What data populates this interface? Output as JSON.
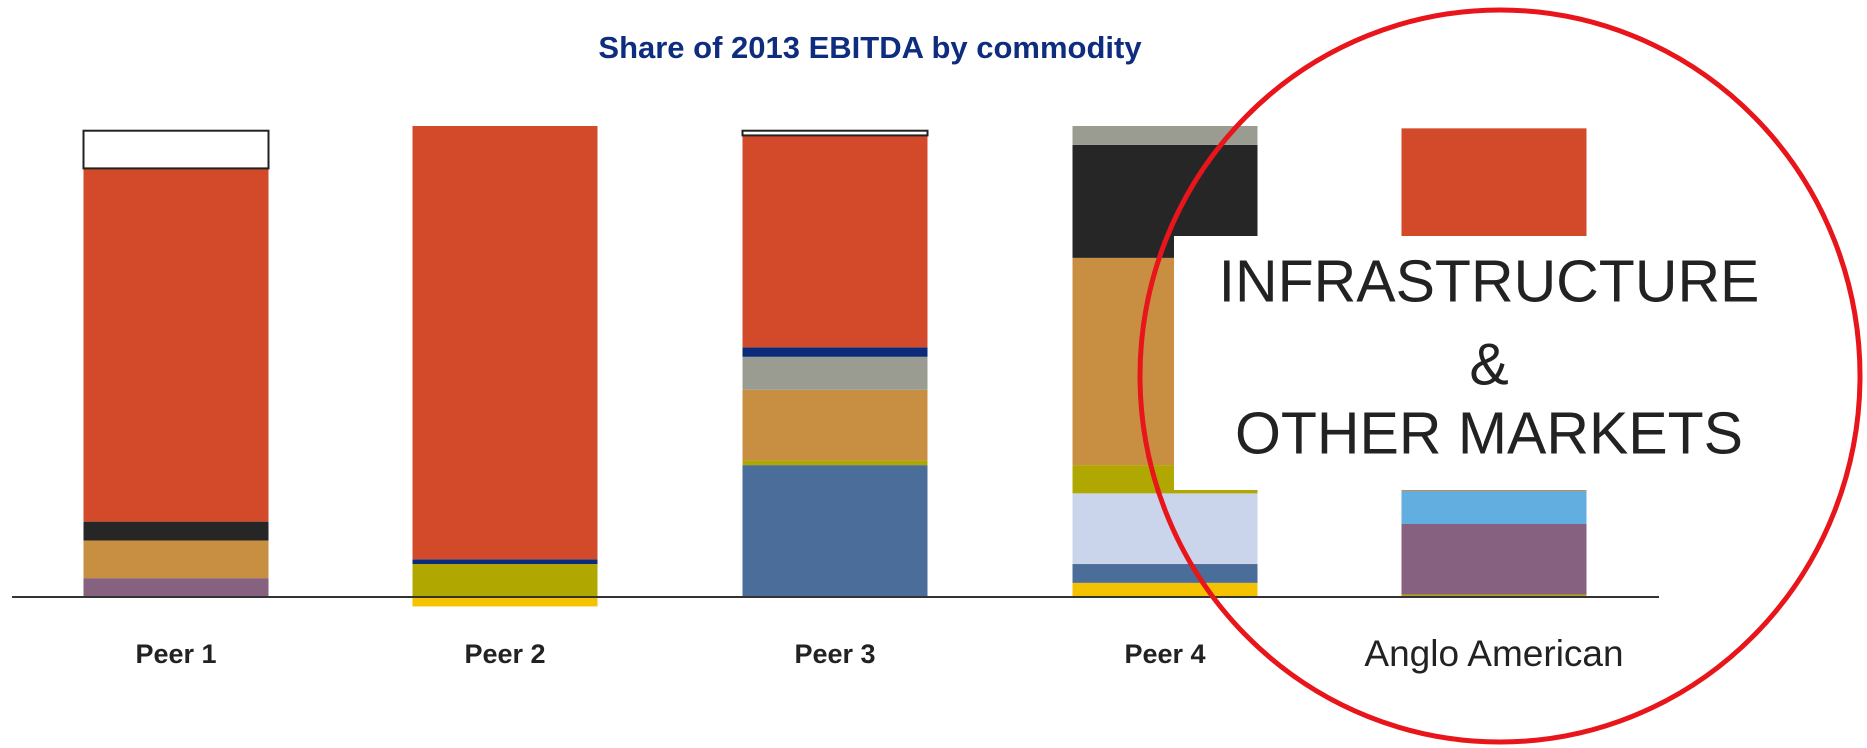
{
  "chart_data": {
    "type": "bar",
    "stacked": true,
    "title": "Share of 2013 EBITDA by commodity",
    "categories": [
      "Peer 1",
      "Peer 2",
      "Peer 3",
      "Peer 4",
      "Anglo American"
    ],
    "ylim": [
      0,
      100
    ],
    "series": [
      {
        "color": "#f5c200",
        "values": [
          0,
          -2,
          0,
          3,
          0
        ]
      },
      {
        "color": "#4a6d9a",
        "values": [
          0,
          0,
          28,
          4,
          0
        ]
      },
      {
        "color": "#cad5ec",
        "values": [
          0,
          0,
          0,
          15,
          0
        ]
      },
      {
        "color": "#b0a800",
        "values": [
          0,
          7,
          1,
          6,
          0.5
        ]
      },
      {
        "color": "#866180",
        "values": [
          4,
          0,
          0,
          0,
          15
        ]
      },
      {
        "color": "#62aee0",
        "values": [
          0,
          0,
          0,
          0,
          7
        ]
      },
      {
        "color": "#c88f42",
        "values": [
          8,
          0,
          15,
          44,
          54
        ]
      },
      {
        "color": "#262626",
        "values": [
          4,
          0,
          0,
          24,
          0
        ]
      },
      {
        "color": "#9a9c92",
        "values": [
          0,
          0,
          7,
          4,
          0
        ]
      },
      {
        "color": "#0b2a7a",
        "values": [
          0,
          1,
          2,
          0,
          0
        ]
      },
      {
        "color": "#d24a2a",
        "values": [
          75,
          92,
          45,
          0,
          23
        ]
      },
      {
        "color": "#ffffff",
        "values": [
          8,
          0,
          1,
          0,
          0
        ]
      }
    ],
    "annotation": [
      "INFRASTRUCTURE",
      "&",
      "OTHER MARKETS"
    ]
  }
}
